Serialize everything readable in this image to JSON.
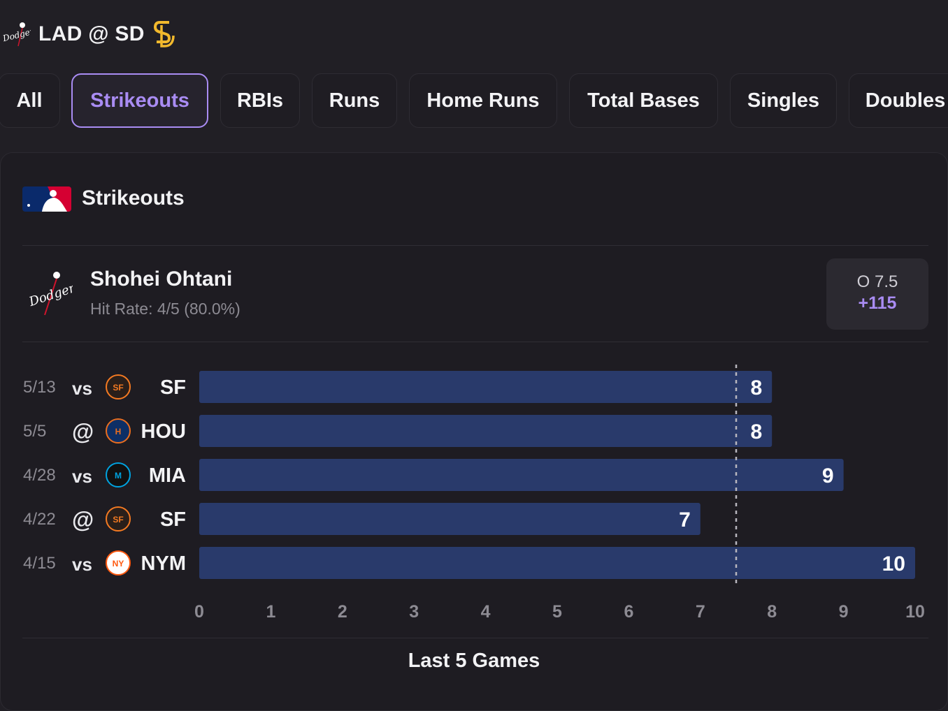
{
  "header": {
    "matchup": "LAD @ SD",
    "away_logo_icon": "dodgers-logo-icon",
    "home_logo_icon": "padres-logo-icon"
  },
  "tabs": [
    {
      "label": "All",
      "active": false
    },
    {
      "label": "Strikeouts",
      "active": true
    },
    {
      "label": "RBIs",
      "active": false
    },
    {
      "label": "Runs",
      "active": false
    },
    {
      "label": "Home Runs",
      "active": false
    },
    {
      "label": "Total Bases",
      "active": false
    },
    {
      "label": "Singles",
      "active": false
    },
    {
      "label": "Doubles",
      "active": false
    }
  ],
  "card": {
    "title": "Strikeouts",
    "league_icon": "mlb-logo-icon",
    "player": {
      "name": "Shohei Ohtani",
      "hit_rate": "Hit Rate: 4/5 (80.0%)",
      "team_icon": "dodgers-logo-icon"
    },
    "line": {
      "value": "O 7.5",
      "odds": "+115"
    },
    "footer": "Last 5 Games"
  },
  "colors": {
    "accent": "#a98cf3",
    "bar": "#293a6b",
    "background": "#211f25"
  },
  "chart_data": {
    "type": "bar",
    "orientation": "horizontal",
    "categories": [
      "5/13",
      "5/5",
      "4/28",
      "4/22",
      "4/15"
    ],
    "rows": [
      {
        "date": "5/13",
        "loc": "vs",
        "team": "SF",
        "team_icon": "giants-logo-icon",
        "value": 8
      },
      {
        "date": "5/5",
        "loc": "@",
        "team": "HOU",
        "team_icon": "astros-logo-icon",
        "value": 8
      },
      {
        "date": "4/28",
        "loc": "vs",
        "team": "MIA",
        "team_icon": "marlins-logo-icon",
        "value": 9
      },
      {
        "date": "4/22",
        "loc": "@",
        "team": "SF",
        "team_icon": "giants-logo-icon",
        "value": 7
      },
      {
        "date": "4/15",
        "loc": "vs",
        "team": "NYM",
        "team_icon": "mets-logo-icon",
        "value": 10
      }
    ],
    "values": [
      8,
      8,
      9,
      7,
      10
    ],
    "threshold": 7.5,
    "xlim": [
      0,
      10
    ],
    "ticks": [
      "0",
      "1",
      "2",
      "3",
      "4",
      "5",
      "6",
      "7",
      "8",
      "9",
      "10"
    ],
    "grid": false,
    "title": "",
    "xlabel": "",
    "ylabel": ""
  }
}
